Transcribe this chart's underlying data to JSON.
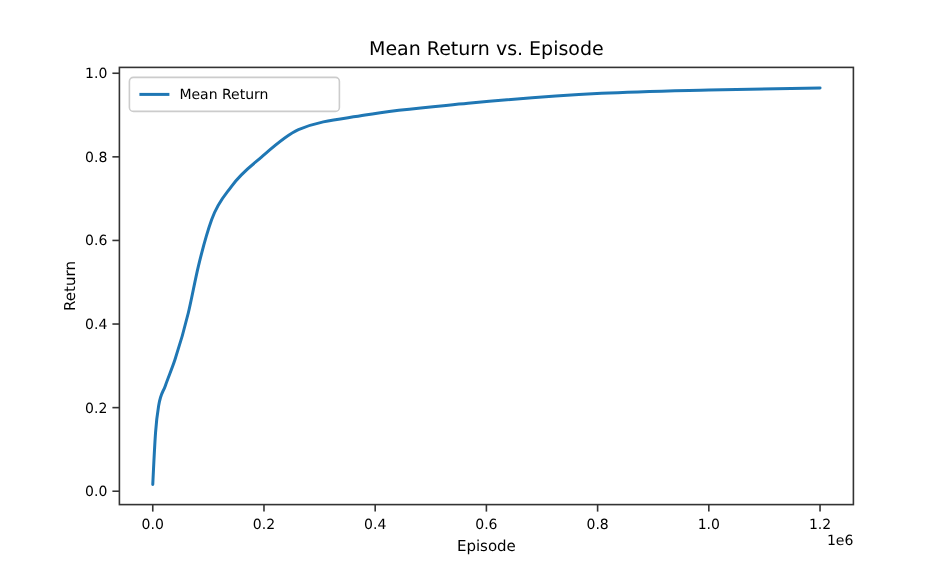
{
  "chart_data": {
    "type": "line",
    "title": "Mean Return vs. Episode",
    "xlabel": "Episode",
    "ylabel": "Return",
    "annotations": [
      "1e6"
    ],
    "xlim": [
      -0.06,
      1.26
    ],
    "xticks": [
      {
        "value": 0,
        "label": "0.0"
      },
      0.2,
      0.4,
      0.6,
      0.8,
      {
        "value": 1,
        "label": "1.0"
      },
      1.2
    ],
    "ylim": [
      -0.032,
      1.014
    ],
    "yticks": [
      {
        "value": 0,
        "label": "0.0"
      },
      0.2,
      0.4,
      0.6,
      0.8,
      {
        "value": 1,
        "label": "1.0"
      }
    ],
    "grid": false,
    "legend": "top left",
    "line_style": "solid",
    "marker": "none",
    "series": [
      {
        "name": "Mean Return",
        "color": "#1f77b4",
        "x": [
          0,
          0.005,
          0.0105,
          0.0225,
          0.04,
          0.064,
          0.082,
          0.106,
          0.142,
          0.196,
          0.262,
          0.382,
          0.567,
          0.807,
          1.0,
          1.2
        ],
        "values": [
          0.016,
          0.14,
          0.204,
          0.252,
          0.315,
          0.427,
          0.538,
          0.65,
          0.73,
          0.8,
          0.865,
          0.9,
          0.928,
          0.952,
          0.96,
          0.965
        ]
      }
    ]
  }
}
